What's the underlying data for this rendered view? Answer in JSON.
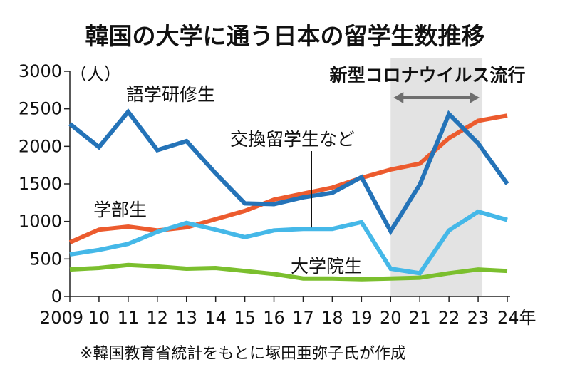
{
  "chart_data": {
    "type": "line",
    "title": "韓国の大学に通う日本の留学生数推移",
    "unit_label": "（人）",
    "x": [
      "2009",
      "10",
      "11",
      "12",
      "13",
      "14",
      "15",
      "16",
      "17",
      "18",
      "19",
      "20",
      "21",
      "22",
      "23",
      "24年"
    ],
    "y_ticks": [
      "3000",
      "2500",
      "2000",
      "1500",
      "1000",
      "500",
      "0"
    ],
    "ylim": [
      0,
      3000
    ],
    "grid": false,
    "series": [
      {
        "name": "語学研修生",
        "color": "#2473b8",
        "values": [
          2300,
          1990,
          2460,
          1950,
          2070,
          1640,
          1240,
          1230,
          1320,
          1380,
          1590,
          870,
          1490,
          2430,
          2040,
          1500
        ]
      },
      {
        "name": "学部生",
        "color": "#ec5b2e",
        "values": [
          720,
          890,
          930,
          880,
          920,
          1030,
          1140,
          1290,
          1370,
          1450,
          1580,
          1690,
          1770,
          2110,
          2340,
          2410
        ]
      },
      {
        "name": "交換留学生など",
        "color": "#45b8e8",
        "values": [
          560,
          620,
          700,
          860,
          980,
          890,
          790,
          880,
          900,
          900,
          990,
          370,
          310,
          880,
          1130,
          1020
        ]
      },
      {
        "name": "大学院生",
        "color": "#7bbf2e",
        "values": [
          360,
          380,
          420,
          400,
          370,
          380,
          340,
          300,
          240,
          240,
          230,
          240,
          250,
          310,
          360,
          340
        ]
      }
    ],
    "covid_label": "新型コロナウイルス流行",
    "source": "※韓国教育省統計をもとに塚田亜弥子氏が作成"
  }
}
